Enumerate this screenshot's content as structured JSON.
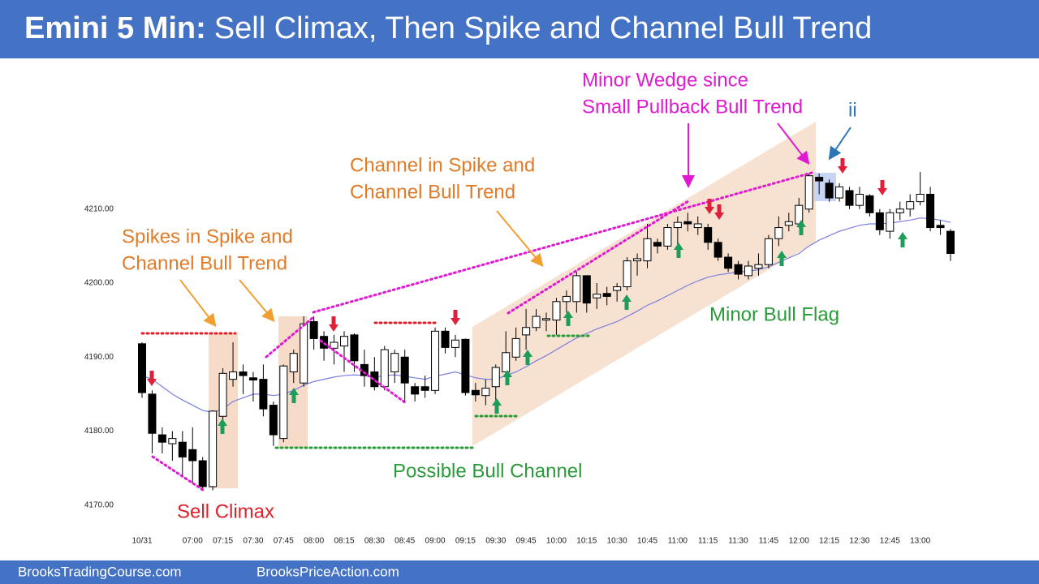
{
  "header": {
    "title_bold": "Emini 5 Min:",
    "title": "Sell Climax, Then Spike and Channel Bull Trend"
  },
  "footer": [
    "BrooksTradingCourse.com",
    "BrooksPriceAction.com"
  ],
  "chart_data": {
    "type": "candlestick",
    "categories": [
      "10/31",
      null,
      null,
      null,
      null,
      "07:00",
      null,
      null,
      "07:15",
      null,
      null,
      "07:30",
      null,
      null,
      "07:45",
      null,
      null,
      "08:00",
      null,
      null,
      "08:15",
      null,
      null,
      "08:30",
      null,
      null,
      "08:45",
      null,
      null,
      "09:00",
      null,
      null,
      "09:15",
      null,
      null,
      "09:30",
      null,
      null,
      "09:45",
      null,
      null,
      "10:00",
      null,
      null,
      "10:15",
      null,
      null,
      "10:30",
      null,
      null,
      "10:45",
      null,
      null,
      "11:00",
      null,
      null,
      "11:15",
      null,
      null,
      "11:30",
      null,
      null,
      "11:45",
      null,
      null,
      "12:00",
      null,
      null,
      "12:15",
      null,
      null,
      "12:30",
      null,
      null,
      "12:45",
      null,
      null,
      "13:00",
      null,
      null,
      null
    ],
    "open": [
      4191.8,
      4185,
      4179.5,
      4178.3,
      4178.5,
      4177.5,
      4176,
      4172.5,
      4182,
      4187,
      4188,
      4187.2,
      4187,
      4183.5,
      4179,
      4188,
      4186.5,
      4194.8,
      4192.8,
      4191.2,
      4191.5,
      4193,
      4189,
      4188,
      4186,
      4188,
      4190,
      4186,
      4186,
      4185.5,
      4193.5,
      4191.3,
      4192.4,
      4185.5,
      4184.8,
      4186,
      4188,
      4190,
      4193,
      4194,
      4195,
      4195,
      4197.5,
      4197.5,
      4201,
      4198,
      4198.6,
      4199,
      4199.5,
      4203,
      4203,
      4205.5,
      4205,
      4207.5,
      4208.3,
      4207.5,
      4207.5,
      4205.5,
      4203.5,
      4202.5,
      4201,
      4202,
      4202.5,
      4206,
      4207.8,
      4208,
      4210,
      4214.3,
      4213.5,
      4211.5,
      4212.5,
      4210.5,
      4211.8,
      4209.5,
      4207,
      4209.5,
      4210,
      4211,
      4212,
      4207.8,
      4207
    ],
    "high": [
      4192,
      4185.5,
      4180.5,
      4180,
      4180,
      4180.5,
      4176.5,
      4182.8,
      4188.5,
      4192,
      4189,
      4188,
      4189,
      4184,
      4189,
      4191,
      4195.5,
      4195.5,
      4193.5,
      4193,
      4193.5,
      4193.2,
      4191,
      4190,
      4191.5,
      4191,
      4191,
      4186.5,
      4187.5,
      4194,
      4194,
      4193,
      4192.5,
      4186.5,
      4187,
      4189,
      4193.5,
      4194,
      4196.5,
      4196.5,
      4196,
      4198,
      4199,
      4201.5,
      4201,
      4200,
      4199.5,
      4200,
      4203.5,
      4204,
      4208,
      4206,
      4208,
      4209,
      4209.5,
      4209,
      4208,
      4206,
      4204,
      4203,
      4203,
      4204,
      4206.5,
      4209,
      4209.5,
      4211.5,
      4214.8,
      4214.8,
      4214,
      4213.5,
      4213,
      4213,
      4212,
      4210,
      4210,
      4211,
      4212,
      4215,
      4213,
      4208.5,
      4207.3
    ],
    "low": [
      4184.5,
      4177,
      4177,
      4176,
      4174,
      4173,
      4172,
      4172,
      4181,
      4186,
      4185,
      4184,
      4182,
      4178,
      4178.5,
      4186.5,
      4186,
      4191,
      4189.5,
      4189,
      4188,
      4188,
      4186,
      4185.5,
      4185.5,
      4186.5,
      4184,
      4184,
      4184.5,
      4185,
      4190.5,
      4190,
      4184.8,
      4184,
      4183.5,
      4183,
      4187.5,
      4189.5,
      4191,
      4193.5,
      4193.5,
      4193,
      4196,
      4196,
      4196,
      4196.5,
      4197,
      4197.5,
      4199,
      4201,
      4202,
      4204,
      4204.5,
      4205,
      4207,
      4206.5,
      4204.5,
      4203,
      4201.5,
      4200.5,
      4200.5,
      4201,
      4202,
      4205,
      4207,
      4207.5,
      4209.5,
      4212,
      4211,
      4211,
      4210,
      4210,
      4209,
      4206.5,
      4206,
      4208.5,
      4209,
      4210.5,
      4207,
      4206.5,
      4203
    ],
    "close": [
      4185.2,
      4179.7,
      4178.5,
      4179,
      4176.5,
      4176,
      4172.5,
      4182.7,
      4187.8,
      4188,
      4187.5,
      4186.9,
      4183,
      4179.5,
      4188.8,
      4190.5,
      4194.5,
      4192.5,
      4191.2,
      4192,
      4192.8,
      4189.5,
      4187.5,
      4186,
      4191,
      4190.5,
      4186.5,
      4185,
      4185.5,
      4193.5,
      4191.3,
      4192.3,
      4185.2,
      4184.9,
      4185.8,
      4188.6,
      4190.6,
      4192.5,
      4194,
      4195.5,
      4195.2,
      4197.5,
      4198.2,
      4201,
      4197.3,
      4198.5,
      4198.2,
      4199.5,
      4203,
      4203.3,
      4206,
      4205,
      4207.5,
      4208.2,
      4208,
      4208,
      4205.5,
      4203.5,
      4202,
      4201.2,
      4202.3,
      4202.5,
      4206,
      4207.5,
      4208.3,
      4210.5,
      4214.5,
      4213.8,
      4211.5,
      4213,
      4210.5,
      4212,
      4209.5,
      4207.2,
      4209.5,
      4210,
      4211,
      4212,
      4207.5,
      4207.5,
      4204
    ],
    "up_color": "#ffffff",
    "down_color": "#000000",
    "ema": {
      "color": "#7b7fe0",
      "values": [
        4187.5,
        4187,
        4186,
        4185,
        4184.2,
        4183.5,
        4182.8,
        4182.5,
        4183,
        4184,
        4184.5,
        4185,
        4185,
        4184.8,
        4185,
        4185.5,
        4186.2,
        4186.7,
        4187,
        4187.3,
        4187.5,
        4187.6,
        4187.5,
        4187.3,
        4187.5,
        4187.6,
        4187.4,
        4187.2,
        4187,
        4187.4,
        4187.7,
        4188,
        4187.6,
        4187.2,
        4187,
        4187,
        4187.5,
        4188,
        4188.7,
        4189.5,
        4190.2,
        4191,
        4191.8,
        4192.6,
        4193.2,
        4193.8,
        4194.3,
        4194.8,
        4195.5,
        4196.2,
        4197,
        4197.6,
        4198.3,
        4199,
        4199.7,
        4200.3,
        4200.8,
        4201.1,
        4201.3,
        4201.5,
        4201.6,
        4201.8,
        4202.2,
        4202.8,
        4203.4,
        4204,
        4205,
        4205.8,
        4206.4,
        4207,
        4207.4,
        4207.8,
        4208,
        4208,
        4208.1,
        4208.3,
        4208.5,
        4208.8,
        4208.7,
        4208.5,
        4208.2
      ]
    },
    "ylim": [
      4168,
      4216
    ],
    "yticks": [
      {
        "value": 4170,
        "label": "4170.00"
      },
      {
        "value": 4180,
        "label": "4180.00"
      },
      {
        "value": 4190,
        "label": "4190.00"
      },
      {
        "value": 4200,
        "label": "4200.00"
      },
      {
        "value": 4210,
        "label": "4210.00"
      }
    ],
    "annotations": [
      {
        "text": "Spikes in Spike and",
        "color": "#e07b28"
      },
      {
        "text": "Channel Bull Trend",
        "color": "#e07b28"
      },
      {
        "text": "Channel in Spike and",
        "color": "#e07b28"
      },
      {
        "text": "Channel Bull Trend",
        "color": "#e07b28"
      },
      {
        "text": "Minor Wedge since",
        "color": "#e01ad0"
      },
      {
        "text": "Small Pullback Bull Trend",
        "color": "#e01ad0"
      },
      {
        "text": "ii",
        "color": "#2e75b6"
      },
      {
        "text": "Sell Climax",
        "color": "#e0202a"
      },
      {
        "text": "Possible Bull Channel",
        "color": "#2a9a3a"
      },
      {
        "text": "Minor Bull Flag",
        "color": "#2a9a3a"
      }
    ]
  }
}
